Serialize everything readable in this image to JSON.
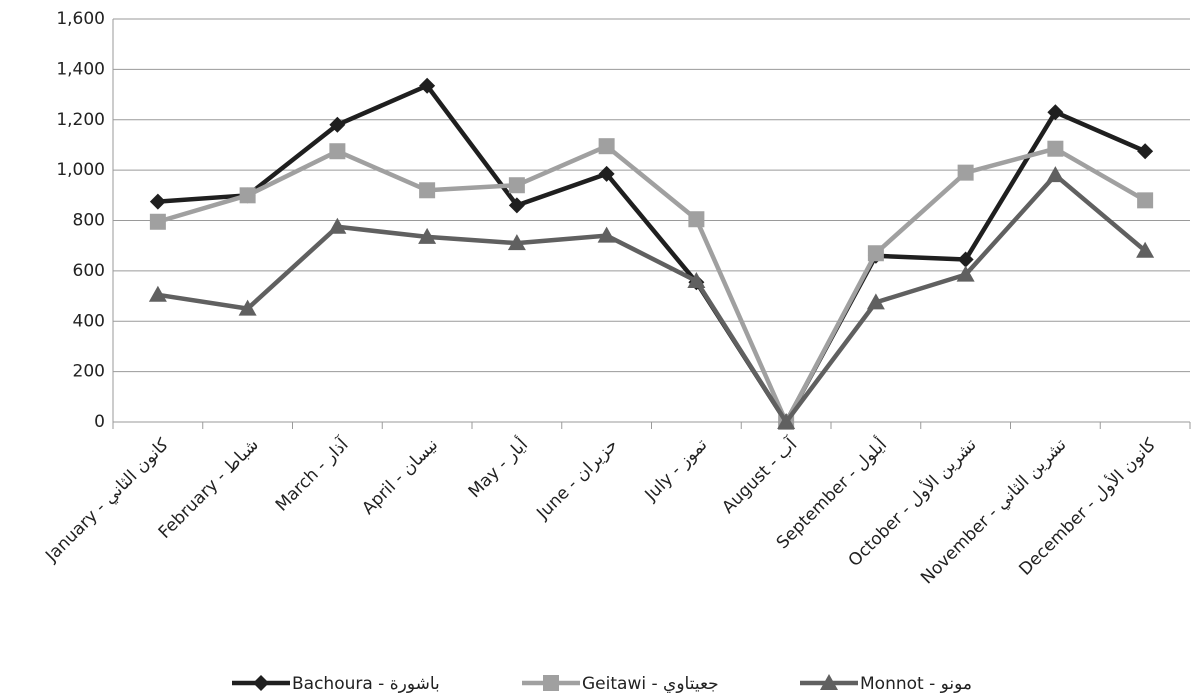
{
  "chart_data": {
    "type": "line",
    "categories": [
      "January - كانون الثاني",
      "February - شباط",
      "March - آذار",
      "April - نيسان",
      "May - أيار",
      "June - حزيران",
      "July - تموز",
      "August - آب",
      "September - أيلول",
      "October - تشرين الأول",
      "November - تشرين الثاني",
      "December - كانون الأول"
    ],
    "series": [
      {
        "name": "Bachoura - باشورة",
        "color": "#1f1f1f",
        "marker": "diamond",
        "values": [
          875,
          900,
          1180,
          1335,
          860,
          985,
          555,
          0,
          660,
          645,
          1230,
          1075
        ]
      },
      {
        "name": "Geitawi - جعيتاوي",
        "color": "#a0a0a0",
        "marker": "square",
        "values": [
          795,
          900,
          1075,
          920,
          940,
          1095,
          805,
          0,
          670,
          990,
          1085,
          880
        ]
      },
      {
        "name": "Monnot - مونو",
        "color": "#606060",
        "marker": "triangle",
        "values": [
          505,
          450,
          775,
          735,
          710,
          740,
          560,
          0,
          475,
          585,
          980,
          680
        ]
      }
    ],
    "ylim": [
      0,
      1600
    ],
    "yticks": [
      0,
      200,
      400,
      600,
      800,
      {
        "value": 1000,
        "label": "1,000"
      },
      {
        "value": 1200,
        "label": "1,200"
      },
      {
        "value": 1400,
        "label": "1,400"
      },
      {
        "value": 1600,
        "label": "1,600"
      }
    ],
    "grid": true,
    "legend": "bottom"
  }
}
